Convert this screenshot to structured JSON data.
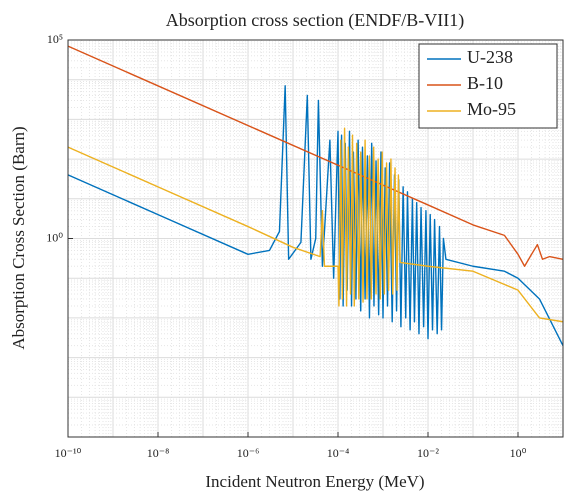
{
  "chart_data": {
    "type": "line",
    "title": "Absorption cross section (ENDF/B-VII1)",
    "x_label": "Incident Neutron Energy (MeV)",
    "y_label": "Absorption Cross Section (Barn)",
    "log_x": true,
    "log_y": true,
    "grid": true,
    "legend": "top-right",
    "xlim": [
      1e-10,
      10
    ],
    "ylim": [
      1e-05,
      100000
    ],
    "xticks": [
      {
        "value": 1e-10,
        "label": "10⁻¹⁰"
      },
      {
        "value": 1e-08,
        "label": "10⁻⁸"
      },
      {
        "value": 1e-06,
        "label": "10⁻⁶"
      },
      {
        "value": 0.0001,
        "label": "10⁻⁴"
      },
      {
        "value": 0.01,
        "label": "10⁻²"
      },
      {
        "value": 1,
        "label": "10⁰"
      }
    ],
    "yticks": [
      {
        "value": 1,
        "label": "10⁰"
      },
      {
        "value": 100000,
        "label": "10⁵"
      }
    ],
    "series": [
      {
        "name": "U-238",
        "color": "#0072BD",
        "x": [
          1e-10,
          1e-08,
          1e-06,
          3e-06,
          5e-06,
          6.7e-06,
          8e-06,
          1.5e-05,
          2.08e-05,
          2.5e-05,
          3.2e-05,
          3.67e-05,
          4.5e-05,
          6.6e-05,
          8e-05,
          0.0001,
          0.00011,
          0.00012,
          0.00013,
          0.000145,
          0.00016,
          0.00018,
          0.0002,
          0.00022,
          0.00025,
          0.00028,
          0.00032,
          0.00035,
          0.0004,
          0.00045,
          0.0005,
          0.00056,
          0.00063,
          0.0007,
          0.0008,
          0.0009,
          0.001,
          0.00112,
          0.00126,
          0.0014,
          0.0016,
          0.0018,
          0.002,
          0.00224,
          0.0025,
          0.0028,
          0.0032,
          0.0035,
          0.004,
          0.0045,
          0.005,
          0.0056,
          0.0063,
          0.007,
          0.008,
          0.009,
          0.01,
          0.0112,
          0.0126,
          0.014,
          0.016,
          0.018,
          0.02,
          0.022,
          0.025,
          0.1,
          0.5,
          1,
          3,
          10
        ],
        "values": [
          40,
          4,
          0.4,
          0.5,
          1.5,
          7000,
          0.3,
          0.8,
          4000,
          0.3,
          1,
          3000,
          0.2,
          300,
          0.1,
          500,
          0.03,
          400,
          0.02,
          250,
          0.05,
          500,
          0.02,
          150,
          0.03,
          300,
          0.015,
          200,
          0.03,
          120,
          0.01,
          250,
          0.02,
          90,
          0.012,
          150,
          0.01,
          60,
          0.02,
          80,
          0.008,
          40,
          0.015,
          30,
          0.006,
          20,
          0.01,
          15,
          0.005,
          10,
          0.008,
          8,
          0.004,
          6,
          0.006,
          5,
          0.003,
          4,
          0.005,
          3,
          0.004,
          2,
          0.005,
          1,
          0.3,
          0.2,
          0.15,
          0.1,
          0.03,
          0.002
        ]
      },
      {
        "name": "B-10",
        "color": "#D95319",
        "x": [
          1e-10,
          0.01,
          0.1,
          0.5,
          1,
          1.4,
          2,
          2.7,
          3.5,
          5,
          10
        ],
        "values": [
          70000,
          7,
          2.2,
          1.2,
          0.4,
          0.2,
          0.4,
          0.7,
          0.3,
          0.35,
          0.3
        ]
      },
      {
        "name": "Mo-95",
        "color": "#EDB120",
        "x": [
          1e-10,
          1e-08,
          1e-06,
          1e-05,
          4e-05,
          4.5e-05,
          5e-05,
          0.0001,
          0.000105,
          0.000115,
          0.000125,
          0.00014,
          0.000155,
          0.00017,
          0.00019,
          0.00021,
          0.00023,
          0.00026,
          0.00029,
          0.00032,
          0.00036,
          0.0004,
          0.00044,
          0.0005,
          0.00055,
          0.00062,
          0.0007,
          0.00078,
          0.00087,
          0.00096,
          0.00107,
          0.0012,
          0.00133,
          0.0015,
          0.00165,
          0.00185,
          0.00205,
          0.0022,
          0.0024,
          0.01,
          0.1,
          1,
          3,
          10
        ],
        "values": [
          200,
          20,
          2,
          0.6,
          0.35,
          5,
          0.2,
          0.2,
          0.02,
          300,
          0.03,
          600,
          0.02,
          200,
          0.04,
          400,
          0.02,
          250,
          0.03,
          150,
          0.025,
          300,
          0.03,
          120,
          0.03,
          200,
          0.04,
          100,
          0.03,
          150,
          0.04,
          80,
          0.05,
          100,
          0.04,
          60,
          0.05,
          40,
          0.25,
          0.2,
          0.15,
          0.05,
          0.01,
          0.008
        ]
      }
    ]
  }
}
